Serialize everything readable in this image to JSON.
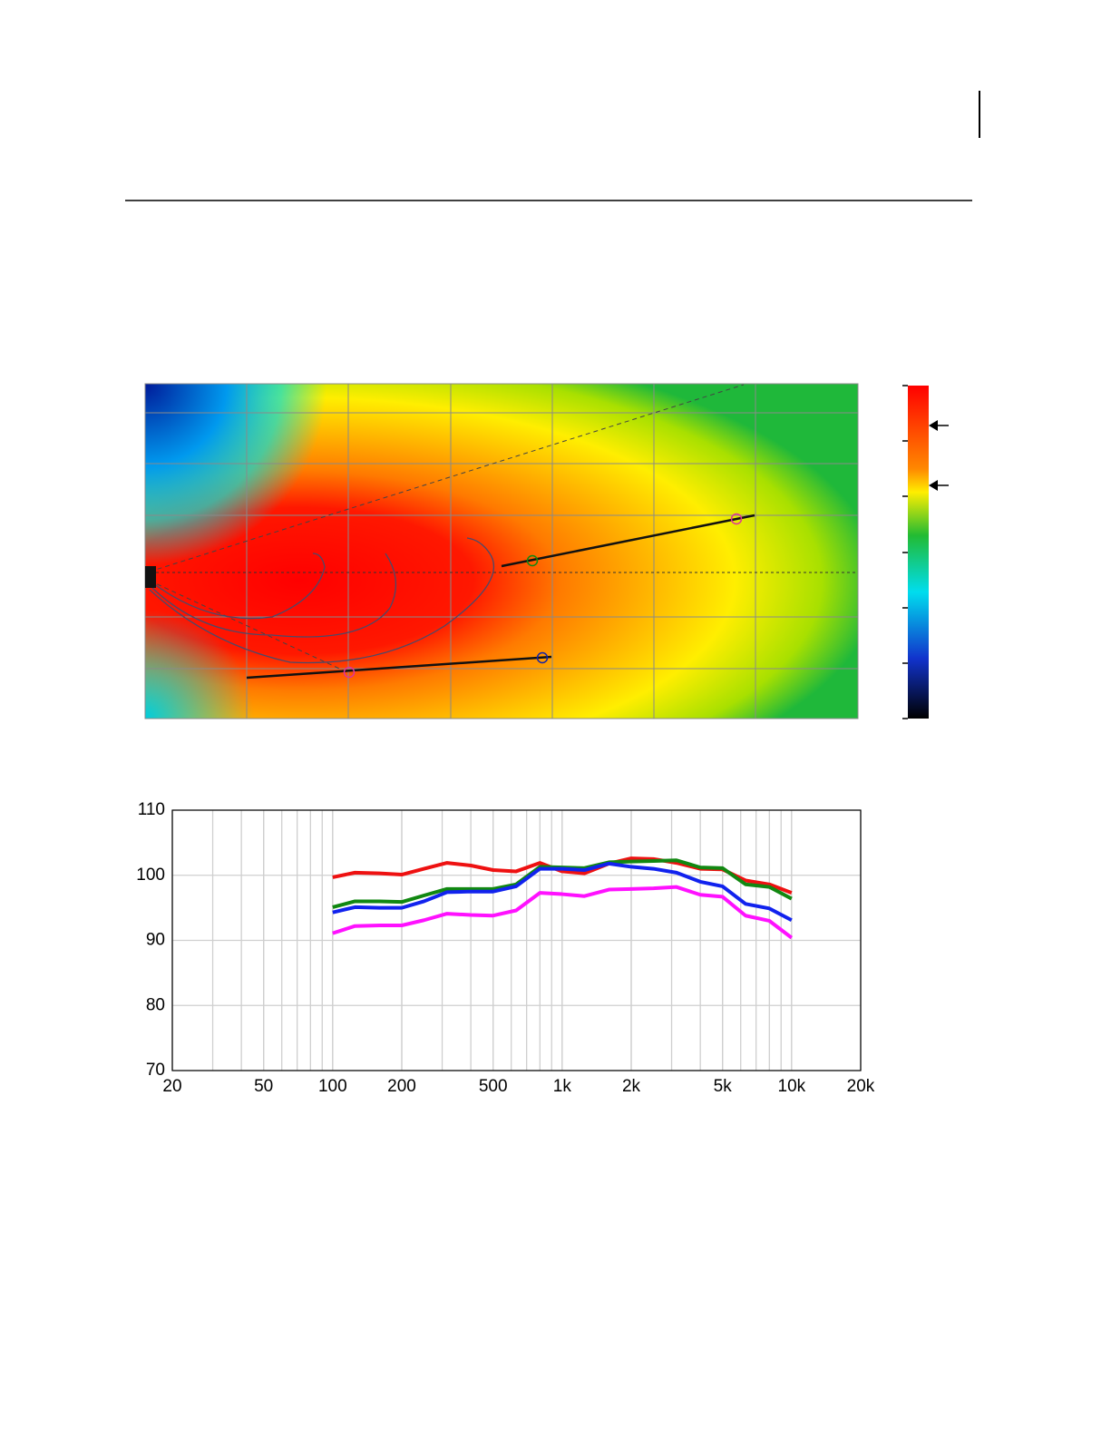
{
  "chart_data": {
    "type": "line",
    "x": [
      100,
      125,
      160,
      200,
      250,
      315,
      400,
      500,
      630,
      800,
      1000,
      1250,
      1600,
      2000,
      2500,
      3150,
      4000,
      5000,
      6300,
      8000,
      10000
    ],
    "series": [
      {
        "color": "#ee1111",
        "values": [
          99.7,
          100.4,
          100.3,
          100.1,
          101.0,
          101.9,
          101.5,
          100.8,
          100.6,
          101.9,
          100.6,
          100.3,
          101.8,
          102.6,
          102.5,
          101.9,
          101.0,
          100.9,
          99.2,
          98.6,
          97.3
        ]
      },
      {
        "color": "#118811",
        "values": [
          95.1,
          96.0,
          96.0,
          95.9,
          96.9,
          97.9,
          97.9,
          97.9,
          98.6,
          101.3,
          101.2,
          101.1,
          102.0,
          102.1,
          102.2,
          102.3,
          101.2,
          101.1,
          98.6,
          98.2,
          96.4
        ]
      },
      {
        "color": "#1122ee",
        "values": [
          94.3,
          95.1,
          95.0,
          95.0,
          96.0,
          97.4,
          97.5,
          97.5,
          98.3,
          101.0,
          101.0,
          100.8,
          101.8,
          101.3,
          101.0,
          100.4,
          99.0,
          98.3,
          95.6,
          94.9,
          93.1
        ]
      },
      {
        "color": "#ff11ff",
        "values": [
          91.1,
          92.2,
          92.3,
          92.3,
          93.1,
          94.1,
          93.9,
          93.8,
          94.6,
          97.3,
          97.1,
          96.8,
          97.8,
          97.9,
          98.0,
          98.2,
          97.0,
          96.7,
          93.8,
          93.0,
          90.4
        ]
      }
    ],
    "xscale": "log",
    "xlim": [
      20,
      20000
    ],
    "xticks": [
      20,
      50,
      100,
      200,
      500,
      {
        "value": 1000,
        "label": "1k"
      },
      {
        "value": 2000,
        "label": "2k"
      },
      {
        "value": 5000,
        "label": "5k"
      },
      {
        "value": 10000,
        "label": "10k"
      },
      {
        "value": 20000,
        "label": "20k"
      }
    ],
    "ylim": [
      70,
      110
    ],
    "yticks": [
      70,
      80,
      90,
      100,
      110
    ],
    "grid": true,
    "minor_grid": true
  }
}
